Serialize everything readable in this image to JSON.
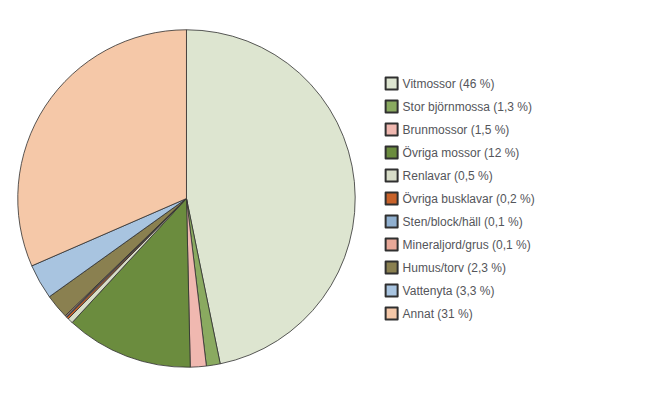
{
  "chart_data": {
    "type": "pie",
    "categories": [
      "Vitmossor (46 %)",
      "Stor björnmossa (1,3 %)",
      "Brunmossor (1,5 %)",
      "Övriga mossor (12 %)",
      "Renlavar (0,5 %)",
      "Övriga busklavar (0,2 %)",
      "Sten/block/häll (0,1 %)",
      "Mineraljord/grus (0,1 %)",
      "Humus/torv (2,3 %)",
      "Vattenyta (3,3 %)",
      "Annat (31 %)"
    ],
    "values": [
      46,
      1.3,
      1.5,
      12,
      0.5,
      0.2,
      0.1,
      0.1,
      2.3,
      3.3,
      31
    ],
    "colors": [
      "#dde5d0",
      "#8aaa60",
      "#f0b8b0",
      "#6b8c3e",
      "#d8ddc8",
      "#c8622a",
      "#90b0d0",
      "#e8a898",
      "#8a8050",
      "#a8c4e0",
      "#f5c8a8"
    ],
    "legend": "right"
  }
}
